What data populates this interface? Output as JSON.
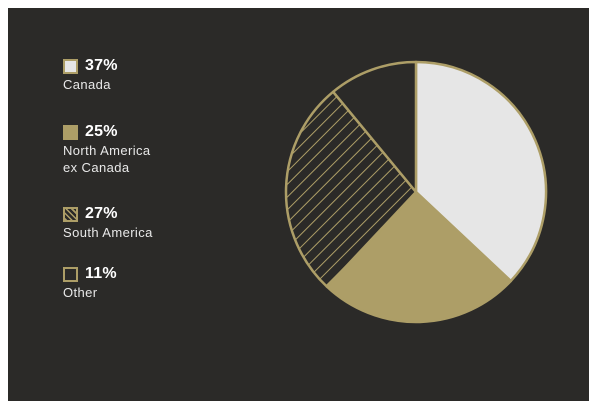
{
  "colors": {
    "background": "#2b2a28",
    "light": "#e6e6e6",
    "gold": "#ad9e67",
    "hatch": "#ad9e67"
  },
  "chart_data": {
    "type": "pie",
    "start_angle_deg": 0,
    "direction": "clockwise",
    "slices": [
      {
        "label": "Canada",
        "value": 37,
        "display": "37%",
        "fill": "light"
      },
      {
        "label": "North America ex Canada",
        "label_lines": [
          "North America",
          "ex Canada"
        ],
        "value": 25,
        "display": "25%",
        "fill": "gold"
      },
      {
        "label": "South America",
        "value": 27,
        "display": "27%",
        "fill": "hatched"
      },
      {
        "label": "Other",
        "value": 11,
        "display": "11%",
        "fill": "outline"
      }
    ],
    "legend_position": "left"
  }
}
